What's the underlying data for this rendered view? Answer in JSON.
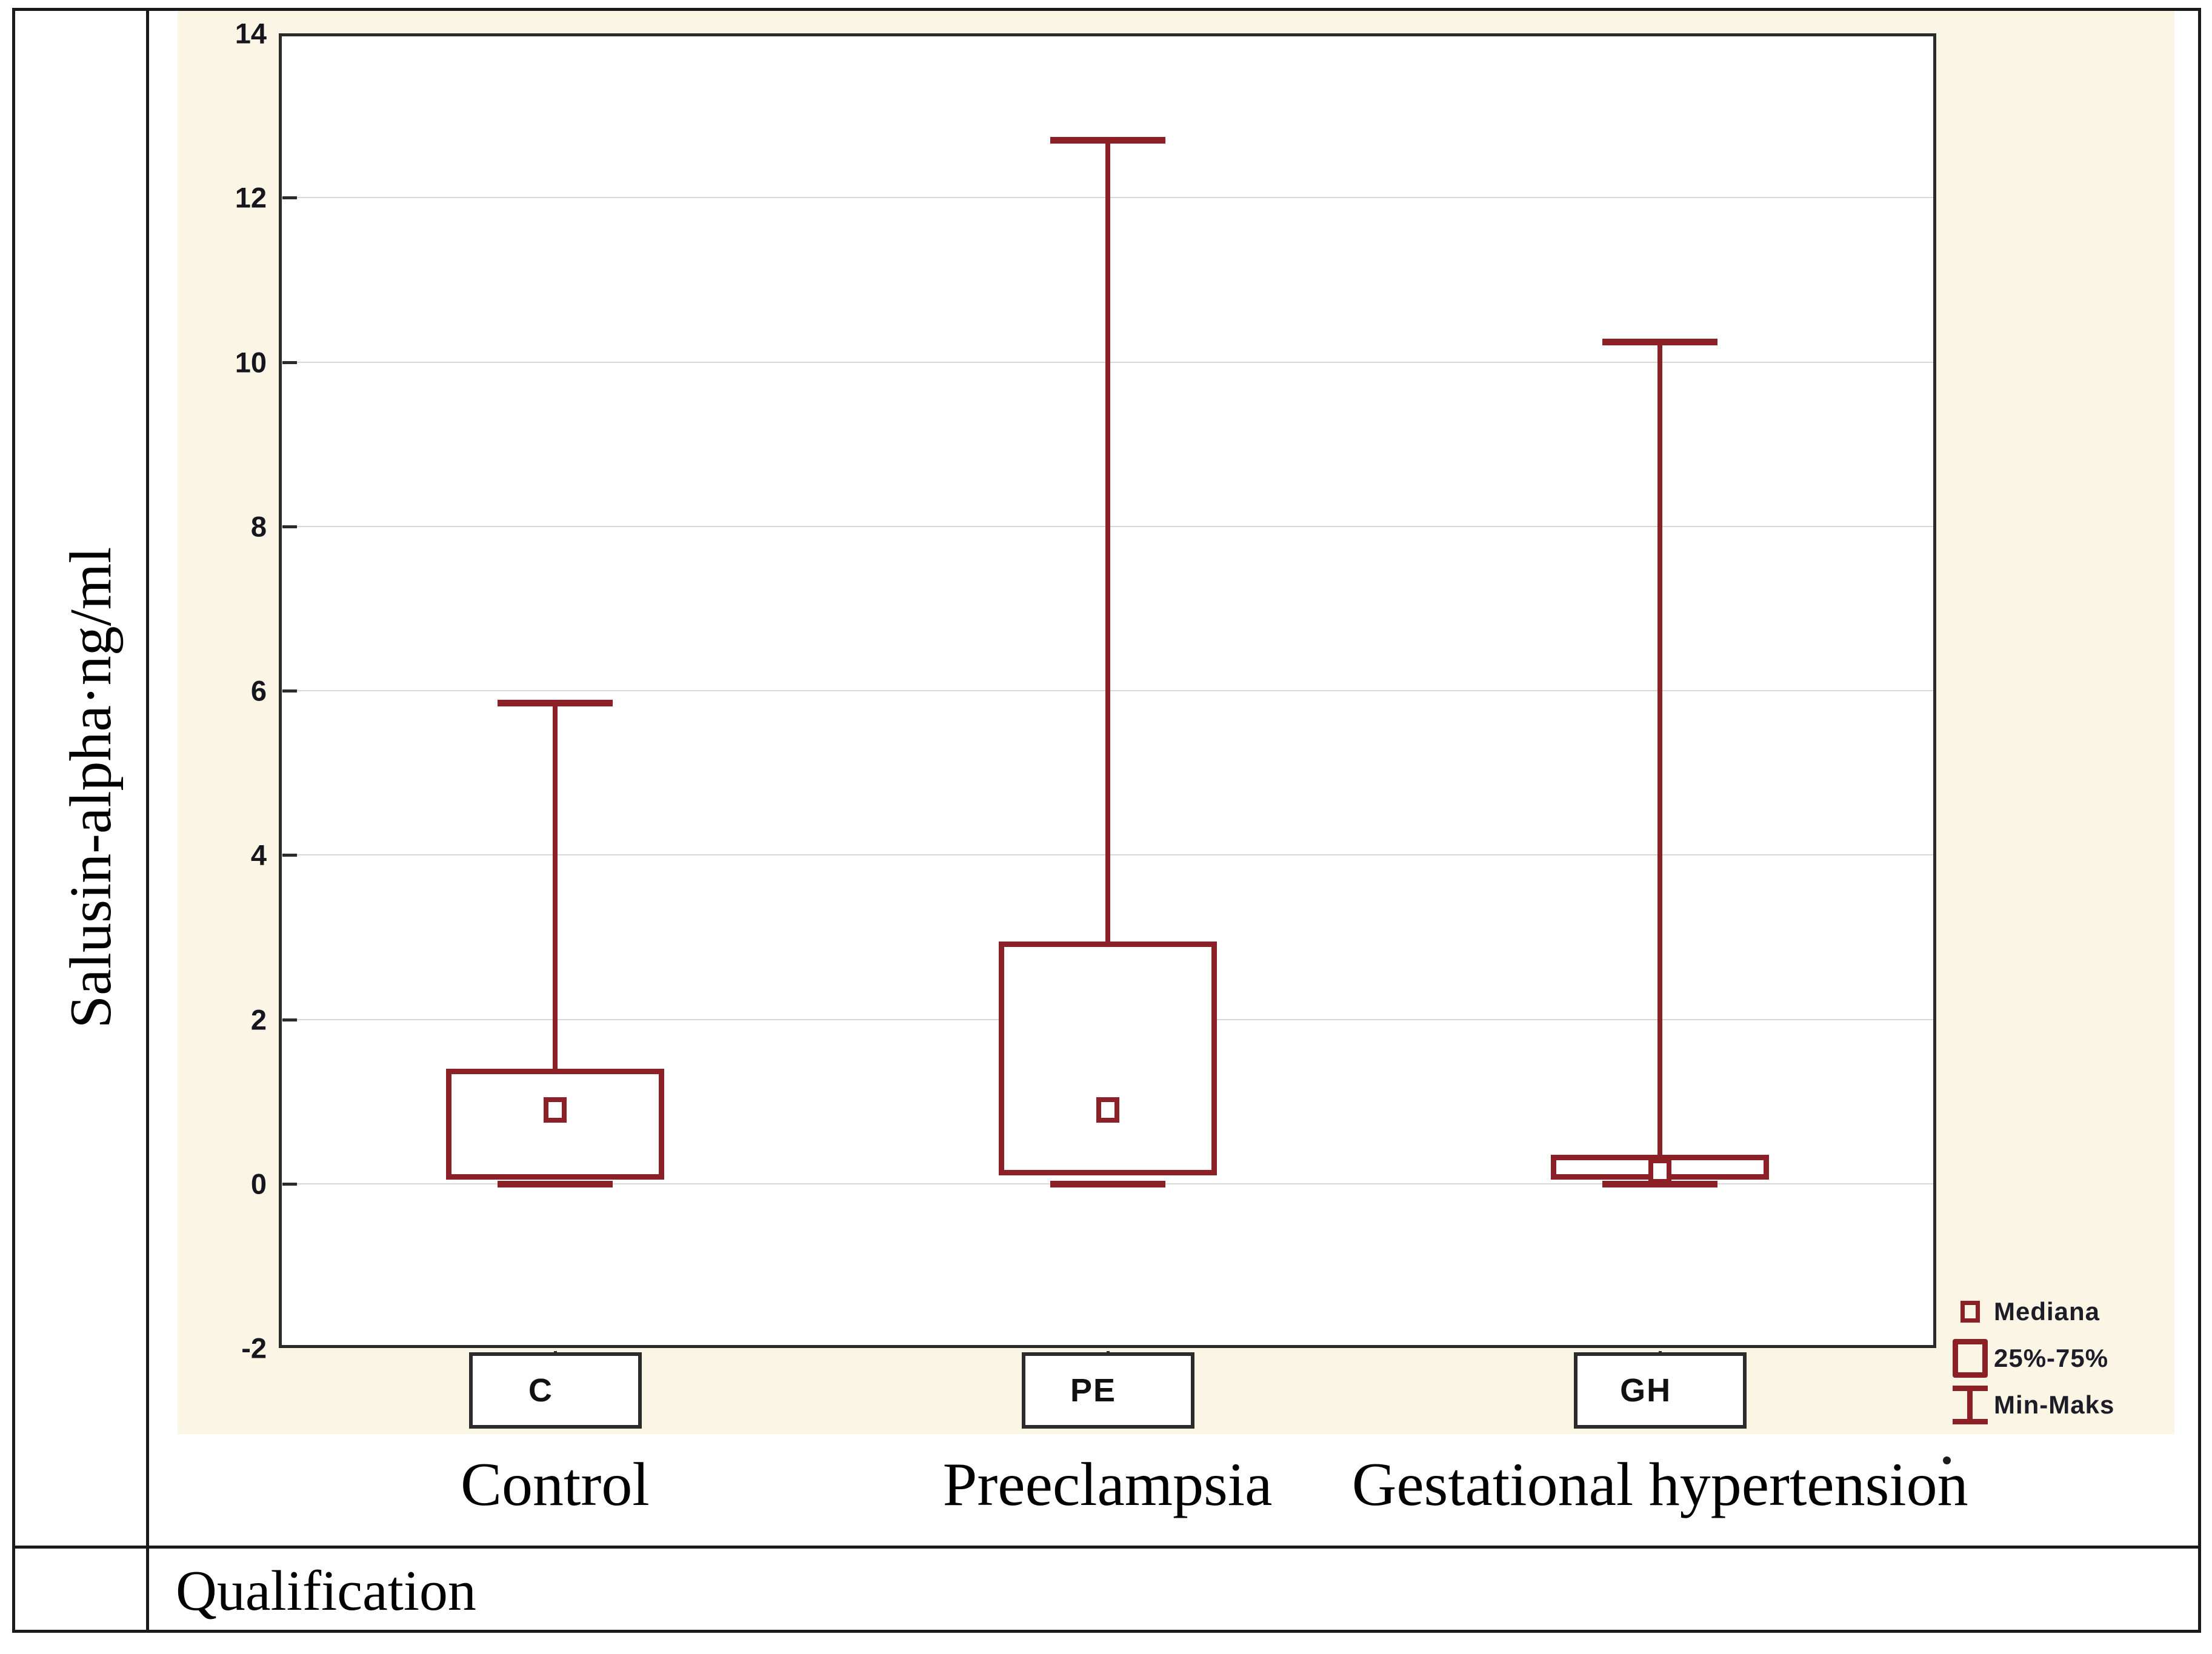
{
  "table": {
    "y_axis_title": "Salusin-alpha·ng/ml",
    "x_axis_title": "Qualification"
  },
  "legend": {
    "items": [
      {
        "marker": "median-square-icon",
        "label": "Mediana"
      },
      {
        "marker": "iqr-box-icon",
        "label": "25%-75%"
      },
      {
        "marker": "min-max-whisker-icon",
        "label": "Min-Maks"
      }
    ]
  },
  "colors": {
    "series_red": "#8B2026",
    "panel_beige": "#FBF5E5",
    "gridline": "#D8D8D8",
    "plot_border": "#2b2b2b",
    "table_border": "#1a1a1a"
  },
  "chart_data": {
    "type": "box",
    "title": "",
    "xlabel": "Qualification",
    "ylabel": "Salusin-alpha·ng/ml",
    "ylim": [
      -2,
      14
    ],
    "yticks": [
      14,
      12,
      10,
      8,
      6,
      4,
      2,
      0,
      -2
    ],
    "grid": "horizontal",
    "legend_position": "bottom-right",
    "whisker_definition": "Min-Maks",
    "box_definition": "25%-75%",
    "center_definition": "Mediana",
    "groups": [
      {
        "code": "C",
        "label": "Control",
        "min": 0.0,
        "q25": 0.05,
        "median": 0.9,
        "q75": 1.4,
        "max": 5.85
      },
      {
        "code": "PE",
        "label": "Preeclampsia",
        "min": 0.0,
        "q25": 0.1,
        "median": 0.9,
        "q75": 2.95,
        "max": 12.7
      },
      {
        "code": "GH",
        "label": "Gestational hypertension",
        "min": 0.0,
        "q25": 0.05,
        "median": 0.15,
        "q75": 0.35,
        "max": 10.25
      }
    ]
  }
}
